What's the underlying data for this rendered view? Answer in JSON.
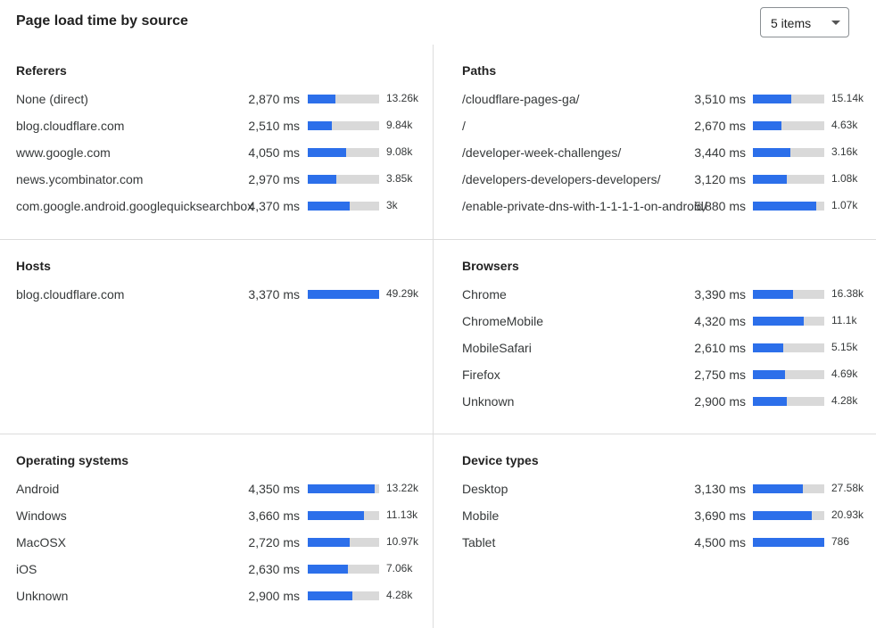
{
  "title": "Page load time by source",
  "items_select": {
    "value": "5 items",
    "icon": "caret-down-icon"
  },
  "colors": {
    "bar_fill": "#2c6fea",
    "bar_track": "#d9d9d9"
  },
  "panels": [
    {
      "title": "Referers",
      "rows": [
        {
          "label": "None (direct)",
          "ms": "2,870 ms",
          "count": "13.26k",
          "fill": 0.39
        },
        {
          "label": "blog.cloudflare.com",
          "ms": "2,510 ms",
          "count": "9.84k",
          "fill": 0.34
        },
        {
          "label": "www.google.com",
          "ms": "4,050 ms",
          "count": "9.08k",
          "fill": 0.54
        },
        {
          "label": "news.ycombinator.com",
          "ms": "2,970 ms",
          "count": "3.85k",
          "fill": 0.4
        },
        {
          "label": "com.google.android.googlequicksearchbox",
          "ms": "4,370 ms",
          "count": "3k",
          "fill": 0.59
        }
      ]
    },
    {
      "title": "Paths",
      "rows": [
        {
          "label": "/cloudflare-pages-ga/",
          "ms": "3,510 ms",
          "count": "15.14k",
          "fill": 0.54
        },
        {
          "label": "/",
          "ms": "2,670 ms",
          "count": "4.63k",
          "fill": 0.4
        },
        {
          "label": "/developer-week-challenges/",
          "ms": "3,440 ms",
          "count": "3.16k",
          "fill": 0.52
        },
        {
          "label": "/developers-developers-developers/",
          "ms": "3,120 ms",
          "count": "1.08k",
          "fill": 0.48
        },
        {
          "label": "/enable-private-dns-with-1-1-1-1-on-android/",
          "ms": "5,880 ms",
          "count": "1.07k",
          "fill": 0.89
        }
      ]
    },
    {
      "title": "Hosts",
      "rows": [
        {
          "label": "blog.cloudflare.com",
          "ms": "3,370 ms",
          "count": "49.29k",
          "fill": 1.0
        }
      ]
    },
    {
      "title": "Browsers",
      "rows": [
        {
          "label": "Chrome",
          "ms": "3,390 ms",
          "count": "16.38k",
          "fill": 0.56
        },
        {
          "label": "ChromeMobile",
          "ms": "4,320 ms",
          "count": "11.1k",
          "fill": 0.71
        },
        {
          "label": "MobileSafari",
          "ms": "2,610 ms",
          "count": "5.15k",
          "fill": 0.42
        },
        {
          "label": "Firefox",
          "ms": "2,750 ms",
          "count": "4.69k",
          "fill": 0.45
        },
        {
          "label": "Unknown",
          "ms": "2,900 ms",
          "count": "4.28k",
          "fill": 0.47
        }
      ]
    },
    {
      "title": "Operating systems",
      "rows": [
        {
          "label": "Android",
          "ms": "4,350 ms",
          "count": "13.22k",
          "fill": 0.94
        },
        {
          "label": "Windows",
          "ms": "3,660 ms",
          "count": "11.13k",
          "fill": 0.79
        },
        {
          "label": "MacOSX",
          "ms": "2,720 ms",
          "count": "10.97k",
          "fill": 0.59
        },
        {
          "label": "iOS",
          "ms": "2,630 ms",
          "count": "7.06k",
          "fill": 0.56
        },
        {
          "label": "Unknown",
          "ms": "2,900 ms",
          "count": "4.28k",
          "fill": 0.63
        }
      ]
    },
    {
      "title": "Device types",
      "rows": [
        {
          "label": "Desktop",
          "ms": "3,130 ms",
          "count": "27.58k",
          "fill": 0.7
        },
        {
          "label": "Mobile",
          "ms": "3,690 ms",
          "count": "20.93k",
          "fill": 0.82
        },
        {
          "label": "Tablet",
          "ms": "4,500 ms",
          "count": "786",
          "fill": 1.0
        }
      ]
    }
  ]
}
